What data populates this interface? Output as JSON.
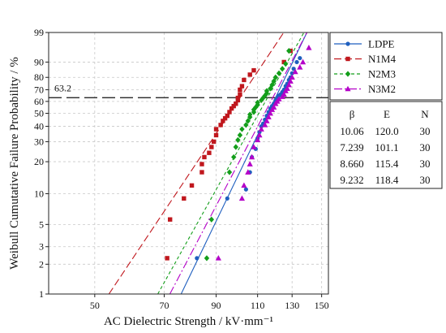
{
  "chart_data": {
    "type": "scatter",
    "xlabel": "AC Dielectric Strength / kV·mm⁻¹",
    "ylabel": "Weibull Cumutative Failure Probability / %",
    "x_scale": "log",
    "y_scale": "weibull",
    "xlim": [
      40,
      155
    ],
    "ylim": [
      1,
      99
    ],
    "x_ticks": [
      50,
      70,
      90,
      110,
      130,
      150
    ],
    "y_ticks": [
      1,
      2,
      3,
      5,
      10,
      20,
      30,
      40,
      50,
      60,
      70,
      80,
      90,
      99
    ],
    "grid": true,
    "legend_position": "right",
    "reference_line": {
      "label": "63.2",
      "y": 63.2
    },
    "stats_header": {
      "beta": "β",
      "eta": "E",
      "n": "N"
    },
    "series": [
      {
        "name": "LDPE",
        "color": "#1f5fbf",
        "marker": "circle",
        "line_style": "solid",
        "beta_label": "10.06",
        "eta_label": "120.0",
        "n_label": "30",
        "beta": 10.06,
        "eta": 120.0,
        "x": [
          82,
          95,
          104,
          106,
          107,
          109,
          110,
          111,
          112,
          113,
          114,
          115,
          116,
          117,
          118,
          119,
          120,
          121,
          122,
          123,
          124,
          125,
          126,
          127,
          128,
          129,
          130,
          131,
          133,
          135
        ],
        "y": [
          2.3,
          9.0,
          11.0,
          16.0,
          22.0,
          26.0,
          32.0,
          36.0,
          40.0,
          42.0,
          45.0,
          48.0,
          51.0,
          54.0,
          56.0,
          58.0,
          61.0,
          63.0,
          65.0,
          66.0,
          68.0,
          70.0,
          73.0,
          75.0,
          78.0,
          80.0,
          83.0,
          86.0,
          90.0,
          92.0
        ]
      },
      {
        "name": "N1M4",
        "color": "#c0171d",
        "marker": "square",
        "line_style": "dashed",
        "beta_label": "7.239",
        "eta_label": "101.1",
        "n_label": "30",
        "beta": 7.239,
        "eta": 101.1,
        "x": [
          71,
          72,
          77,
          80,
          84,
          84,
          85,
          87,
          88,
          89,
          90,
          90,
          92,
          93,
          94,
          95,
          96,
          97,
          98,
          99,
          100,
          100,
          101,
          101,
          102,
          103,
          106,
          108,
          125,
          129
        ],
        "y": [
          2.3,
          5.6,
          9.0,
          12.0,
          16.0,
          19.0,
          22.0,
          24.0,
          27.0,
          30.0,
          34.0,
          38.0,
          41.0,
          44.0,
          46.0,
          48.0,
          51.0,
          54.0,
          56.0,
          58.0,
          61.0,
          63.0,
          66.0,
          70.0,
          73.0,
          78.0,
          82.0,
          85.0,
          90.0,
          95.0
        ]
      },
      {
        "name": "N2M3",
        "color": "#139e1a",
        "marker": "diamond",
        "line_style": "short-dashed",
        "beta_label": "8.660",
        "eta_label": "115.4",
        "n_label": "30",
        "beta": 8.66,
        "eta": 115.4,
        "x": [
          86,
          88,
          96,
          98,
          99,
          100,
          101,
          102,
          104,
          105,
          106,
          106,
          108,
          108,
          109,
          110,
          110,
          112,
          113,
          114,
          115,
          115,
          117,
          118,
          119,
          120,
          122,
          124,
          126,
          128
        ],
        "y": [
          2.3,
          5.6,
          16.0,
          22.0,
          27.0,
          31.0,
          34.0,
          38.0,
          41.0,
          44.0,
          47.0,
          49.0,
          51.0,
          53.0,
          55.0,
          57.0,
          59.0,
          61.0,
          63.0,
          65.0,
          67.0,
          69.0,
          71.0,
          74.0,
          77.0,
          80.0,
          83.0,
          86.0,
          89.0,
          95.0
        ]
      },
      {
        "name": "N3M2",
        "color": "#b400c8",
        "marker": "triangle",
        "line_style": "dash-dot",
        "beta_label": "9.232",
        "eta_label": "118.4",
        "n_label": "30",
        "beta": 9.232,
        "eta": 118.4,
        "x": [
          91,
          102,
          103,
          105,
          106,
          107,
          108,
          110,
          111,
          112,
          114,
          115,
          116,
          117,
          118,
          119,
          120,
          121,
          122,
          124,
          125,
          126,
          127,
          128,
          129,
          130,
          132,
          135,
          137,
          141
        ],
        "y": [
          2.3,
          9.0,
          12.0,
          16.0,
          19.0,
          22.0,
          27.0,
          31.0,
          34.0,
          38.0,
          41.0,
          44.0,
          47.0,
          50.0,
          53.0,
          55.0,
          58.0,
          60.0,
          62.0,
          64.0,
          66.0,
          69.0,
          71.0,
          74.0,
          77.0,
          80.0,
          84.0,
          87.0,
          90.0,
          96.0
        ]
      }
    ]
  }
}
